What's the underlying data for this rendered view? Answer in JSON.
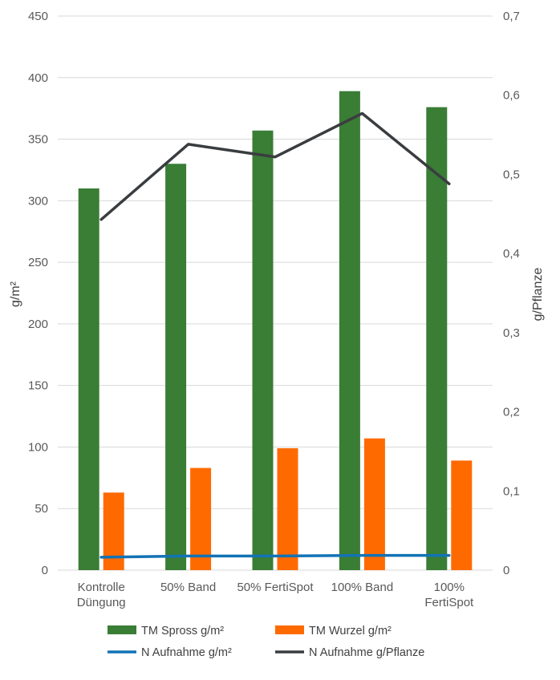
{
  "chart_data": {
    "type": "bar",
    "categories": [
      [
        "Kontrolle",
        "Düngung"
      ],
      [
        "50% Band"
      ],
      [
        "50% FertiSpot"
      ],
      [
        "100% Band"
      ],
      [
        "100%",
        "FertiSpot"
      ]
    ],
    "ylabel": "g/m²",
    "y2label": "g/Pflanze",
    "ylim": [
      0,
      450
    ],
    "y2lim": [
      0,
      0.7
    ],
    "yticks": [
      "0",
      "50",
      "100",
      "150",
      "200",
      "250",
      "300",
      "350",
      "400",
      "450"
    ],
    "y2ticks": [
      "0",
      "0,1",
      "0,2",
      "0,3",
      "0,4",
      "0,5",
      "0,6",
      "0,7"
    ],
    "grid": true,
    "legend_position": "bottom",
    "series": [
      {
        "name": "TM Spross g/m²",
        "kind": "bar",
        "axis": "left",
        "color": "#3a7d35",
        "values": [
          310,
          330,
          357,
          389,
          376
        ]
      },
      {
        "name": "TM Wurzel g/m²",
        "kind": "bar",
        "axis": "left",
        "color": "#ff6a00",
        "values": [
          63,
          83,
          99,
          107,
          89
        ]
      },
      {
        "name": "N Aufnahme  g/m²",
        "kind": "line",
        "axis": "left",
        "color": "#1273b5",
        "values": [
          10.5,
          11.5,
          11.5,
          12,
          12
        ]
      },
      {
        "name": "N Aufnahme  g/Pflanze",
        "kind": "line",
        "axis": "right",
        "color": "#3a3d40",
        "values": [
          0.443,
          0.538,
          0.522,
          0.577,
          0.488
        ]
      }
    ]
  }
}
